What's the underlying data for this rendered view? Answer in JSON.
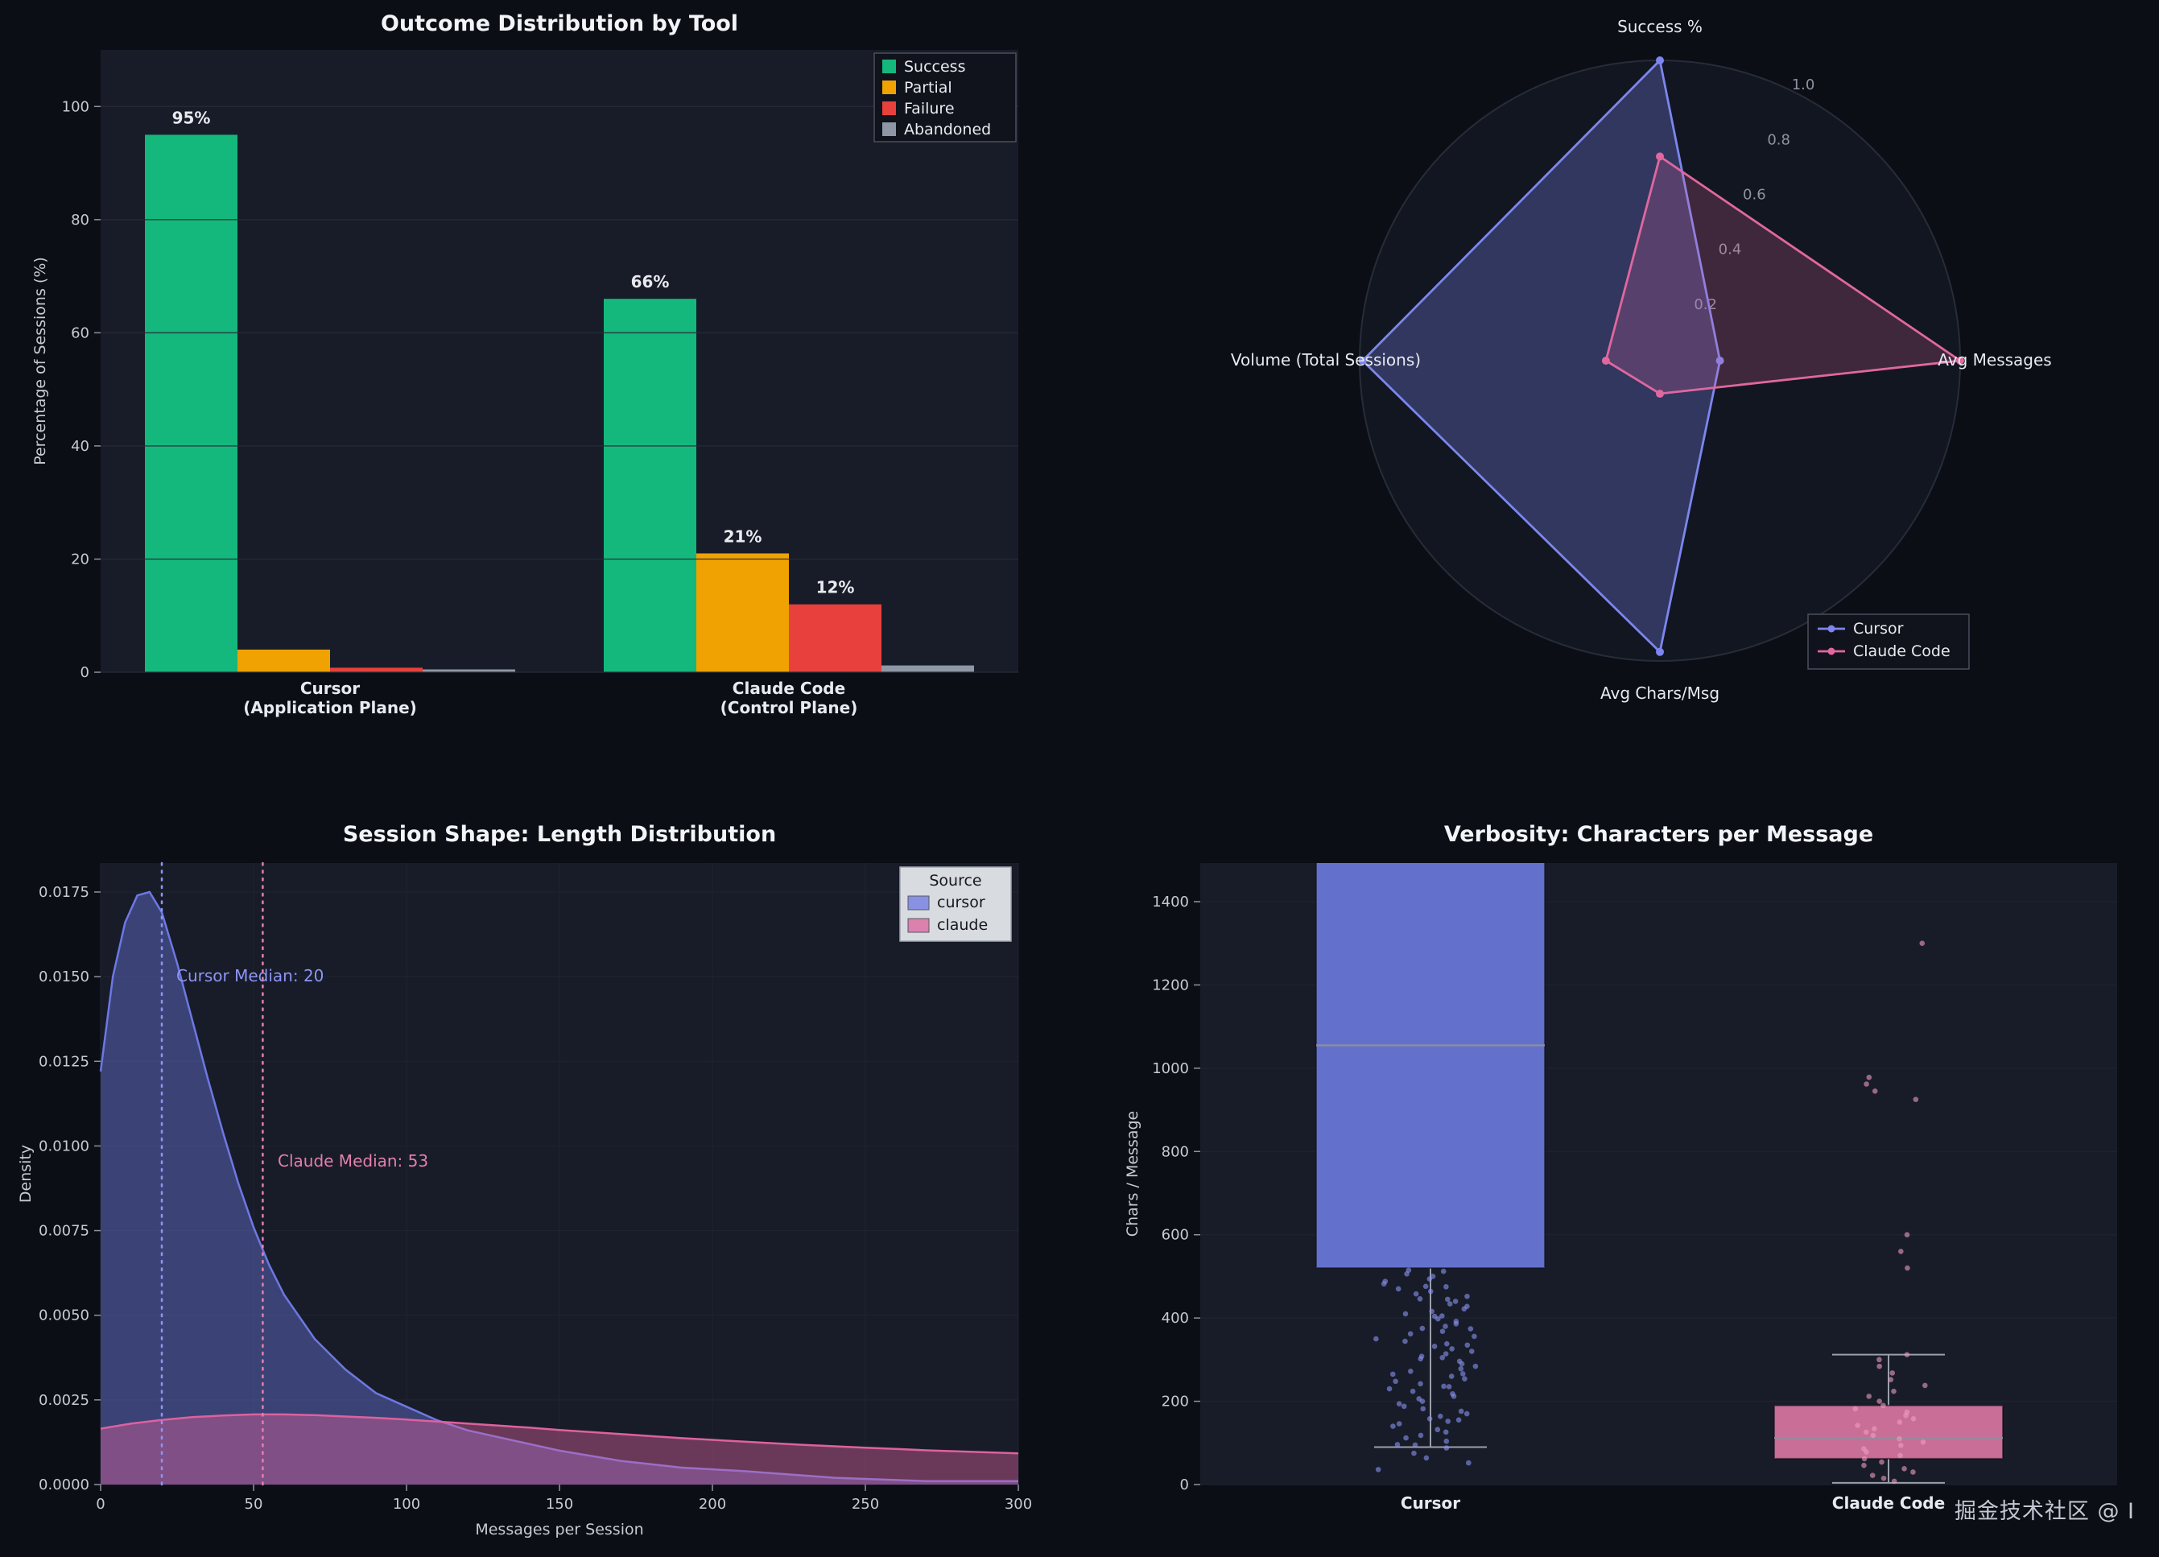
{
  "page": {
    "watermark": "掘金技术社区 @ I",
    "background": "#0b0e15"
  },
  "theme": {
    "panel": "#181c28",
    "radar_circle": "#121620",
    "grid": "#272c39",
    "grid_faint": "#1e2330",
    "title": "#f3f4f8",
    "text": "#e8eaef",
    "tick": "#c6cad3",
    "muted": "#8d93a0",
    "legend_dark_bg": "#10131b",
    "legend_dark_border": "#4a4f5c",
    "legend_light_bg": "#d8dbe0",
    "legend_light_border": "#9fa4ad",
    "legend_light_text": "#17191f",
    "whisker": "#9aa0ab",
    "median_line": "#8a8fa0",
    "cursor_accent": "#7c86ee",
    "claude_accent": "#e0679f"
  },
  "chart_data": [
    {
      "id": "outcome_bar",
      "type": "bar",
      "title": "Outcome Distribution by Tool",
      "ylabel": "Percentage of Sessions (%)",
      "ylim": [
        0,
        110
      ],
      "yticks": [
        0,
        20,
        40,
        60,
        80,
        100
      ],
      "ytick_labels": [
        "0",
        "20",
        "40",
        "60",
        "80",
        "100"
      ],
      "categories": [
        [
          "Cursor",
          "(Application Plane)"
        ],
        [
          "Claude Code",
          "(Control Plane)"
        ]
      ],
      "series": [
        {
          "name": "Success",
          "color": "#14b87c",
          "values": [
            95,
            66
          ],
          "labels": [
            "95%",
            "66%"
          ]
        },
        {
          "name": "Partial",
          "color": "#f0a202",
          "values": [
            4,
            21
          ],
          "labels": [
            null,
            "21%"
          ]
        },
        {
          "name": "Failure",
          "color": "#e8403c",
          "values": [
            0.8,
            12
          ],
          "labels": [
            null,
            "12%"
          ]
        },
        {
          "name": "Abandoned",
          "color": "#8d97a5",
          "values": [
            0.5,
            1.2
          ],
          "labels": [
            null,
            null
          ]
        }
      ],
      "legend_position": "top-right",
      "grid": true
    },
    {
      "id": "tool_radar",
      "type": "radar",
      "axes": [
        "Success %",
        "Avg Messages",
        "Avg Chars/Msg",
        "Volume (Total Sessions)"
      ],
      "ticks": [
        0.2,
        0.4,
        0.6,
        0.8,
        1.0
      ],
      "tick_labels": [
        "0.2",
        "0.4",
        "0.6",
        "0.8",
        "1.0"
      ],
      "rlim": [
        0,
        1.0
      ],
      "series": [
        {
          "name": "Cursor",
          "color": "#7c86ee",
          "values": [
            1.0,
            0.2,
            0.97,
            0.99
          ]
        },
        {
          "name": "Claude Code",
          "color": "#e0679f",
          "values": [
            0.68,
            1.0,
            0.11,
            0.18
          ]
        }
      ],
      "legend_position": "bottom-right"
    },
    {
      "id": "session_length_kde",
      "type": "area",
      "title": "Session Shape: Length Distribution",
      "xlabel": "Messages per Session",
      "ylabel": "Density",
      "xlim": [
        0,
        300
      ],
      "ylim": [
        0,
        0.0175
      ],
      "xticks": [
        0,
        50,
        100,
        150,
        200,
        250,
        300
      ],
      "xtick_labels": [
        "0",
        "50",
        "100",
        "150",
        "200",
        "250",
        "300"
      ],
      "yticks": [
        0,
        0.0025,
        0.005,
        0.0075,
        0.01,
        0.0125,
        0.015,
        0.0175
      ],
      "ytick_labels": [
        "0.0000",
        "0.0025",
        "0.0050",
        "0.0075",
        "0.0100",
        "0.0125",
        "0.0150",
        "0.0175"
      ],
      "legend_title": "Source",
      "series": [
        {
          "name": "cursor",
          "color": "#6d78e3",
          "points": [
            [
              0,
              0.0122
            ],
            [
              4,
              0.015
            ],
            [
              8,
              0.0166
            ],
            [
              12,
              0.0174
            ],
            [
              16,
              0.0175
            ],
            [
              20,
              0.0169
            ],
            [
              25,
              0.0154
            ],
            [
              30,
              0.0137
            ],
            [
              35,
              0.012
            ],
            [
              40,
              0.0104
            ],
            [
              45,
              0.0089
            ],
            [
              50,
              0.0076
            ],
            [
              55,
              0.0065
            ],
            [
              60,
              0.0056
            ],
            [
              70,
              0.0043
            ],
            [
              80,
              0.0034
            ],
            [
              90,
              0.0027
            ],
            [
              100,
              0.0023
            ],
            [
              110,
              0.0019
            ],
            [
              120,
              0.0016
            ],
            [
              135,
              0.0013
            ],
            [
              150,
              0.001
            ],
            [
              170,
              0.0007
            ],
            [
              190,
              0.0005
            ],
            [
              210,
              0.0004
            ],
            [
              240,
              0.0002
            ],
            [
              270,
              0.0001
            ],
            [
              300,
              0.0001
            ]
          ]
        },
        {
          "name": "claude",
          "color": "#de619e",
          "points": [
            [
              0,
              0.00165
            ],
            [
              10,
              0.0018
            ],
            [
              20,
              0.00191
            ],
            [
              30,
              0.00199
            ],
            [
              40,
              0.00204
            ],
            [
              50,
              0.00207
            ],
            [
              60,
              0.00207
            ],
            [
              70,
              0.00205
            ],
            [
              80,
              0.00201
            ],
            [
              90,
              0.00197
            ],
            [
              100,
              0.00192
            ],
            [
              110,
              0.00186
            ],
            [
              120,
              0.0018
            ],
            [
              130,
              0.00174
            ],
            [
              140,
              0.00168
            ],
            [
              150,
              0.00161
            ],
            [
              160,
              0.00155
            ],
            [
              170,
              0.00149
            ],
            [
              180,
              0.00143
            ],
            [
              190,
              0.00137
            ],
            [
              200,
              0.00132
            ],
            [
              210,
              0.00127
            ],
            [
              220,
              0.00122
            ],
            [
              230,
              0.00117
            ],
            [
              240,
              0.00113
            ],
            [
              250,
              0.00109
            ],
            [
              260,
              0.00105
            ],
            [
              270,
              0.00101
            ],
            [
              280,
              0.00098
            ],
            [
              290,
              0.00095
            ],
            [
              300,
              0.00092
            ]
          ]
        }
      ],
      "medians": [
        {
          "label": "Cursor Median: 20",
          "x": 20,
          "color": "#8c95f4"
        },
        {
          "label": "Claude Median: 53",
          "x": 53,
          "color": "#e57fac"
        }
      ],
      "grid": true
    },
    {
      "id": "verbosity_box",
      "type": "box",
      "title": "Verbosity: Characters per Message",
      "ylabel": "Chars / Message",
      "ylim": [
        0,
        1490
      ],
      "yticks": [
        0,
        200,
        400,
        600,
        800,
        1000,
        1200,
        1400
      ],
      "ytick_labels": [
        "0",
        "200",
        "400",
        "600",
        "800",
        "1000",
        "1200",
        "1400"
      ],
      "categories": [
        "Cursor",
        "Claude Code"
      ],
      "boxes": [
        {
          "name": "Cursor",
          "color": "#6b78da",
          "point_color": "#8a93f2",
          "q1": 520,
          "q3": 1560,
          "median": 1055,
          "whisker_low": 90,
          "whisker_high": null,
          "points": [
            36,
            52,
            64,
            75,
            88,
            96,
            104,
            112,
            118,
            126,
            132,
            140,
            146,
            152,
            158,
            164,
            170,
            176,
            182,
            188,
            194,
            200,
            206,
            212,
            218,
            224,
            230,
            236,
            242,
            248,
            254,
            260,
            266,
            272,
            278,
            284,
            290,
            296,
            302,
            308,
            314,
            320,
            326,
            332,
            338,
            344,
            350,
            356,
            362,
            368,
            374,
            380,
            386,
            392,
            398,
            404,
            410,
            416,
            422,
            428,
            434,
            440,
            446,
            452,
            458,
            464,
            470,
            476,
            482,
            488,
            494,
            500,
            506,
            512,
            95,
            155,
            235,
            305,
            375,
            445,
            265,
            335,
            405,
            475,
            515
          ]
        },
        {
          "name": "Claude Code",
          "color": "#d9759f",
          "point_color": "#ef9dc0",
          "q1": 62,
          "q3": 190,
          "median": 112,
          "whisker_low": 4,
          "whisker_high": 312,
          "points": [
            8,
            15,
            22,
            30,
            38,
            46,
            54,
            62,
            70,
            78,
            86,
            94,
            102,
            110,
            118,
            126,
            134,
            142,
            150,
            158,
            166,
            174,
            182,
            190,
            200,
            212,
            224,
            238,
            252,
            268,
            284,
            300,
            312,
            520,
            560,
            600,
            925,
            945,
            962,
            978,
            1300
          ]
        }
      ]
    }
  ]
}
